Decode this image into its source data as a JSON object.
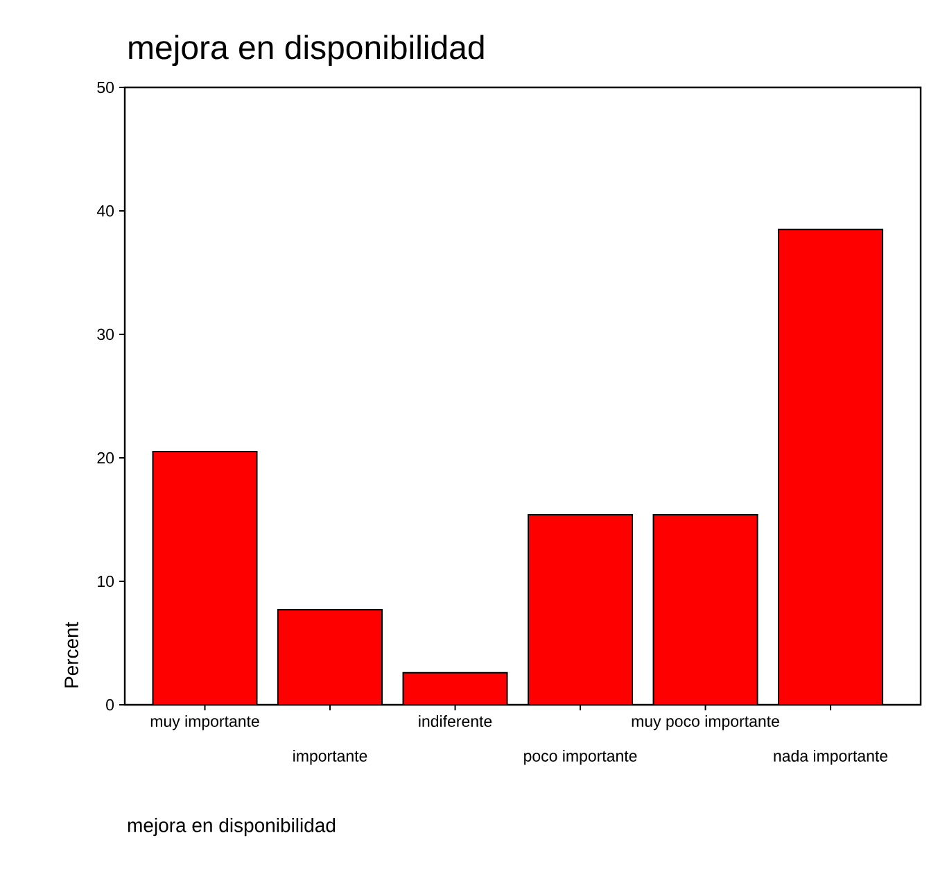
{
  "chart_data": {
    "type": "bar",
    "title": "mejora en disponibilidad",
    "xlabel": "mejora en disponibilidad",
    "ylabel": "Percent",
    "categories": [
      "muy importante",
      "importante",
      "indiferente",
      "poco importante",
      "muy poco importante",
      "nada importante"
    ],
    "values": [
      20.5,
      7.7,
      2.6,
      15.4,
      15.4,
      38.5
    ],
    "color": "#ff0000",
    "ylim": [
      0,
      50
    ],
    "yticks": [
      0,
      10,
      20,
      30,
      40,
      50
    ]
  }
}
